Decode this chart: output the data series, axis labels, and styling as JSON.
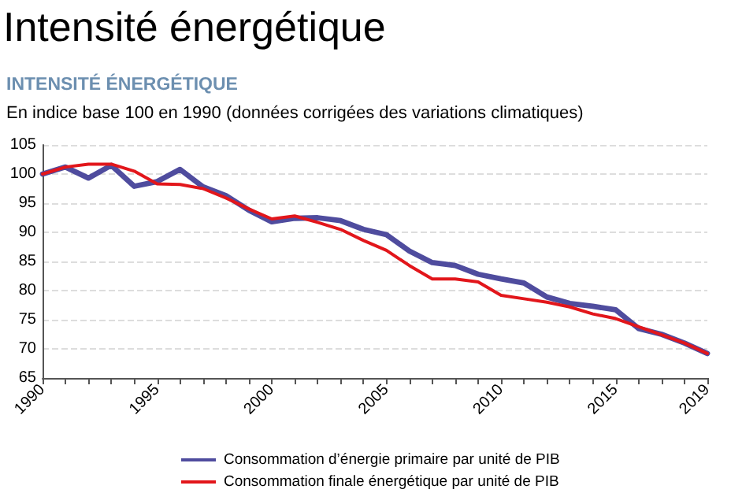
{
  "chart_data": {
    "type": "line",
    "title": "Intensité énergétique",
    "subtitle": "INTENSITÉ ÉNERGÉTIQUE",
    "ylabel": "En indice base 100 en 1990 (données corrigées des variations climatiques)",
    "x": [
      1990,
      1991,
      1992,
      1993,
      1994,
      1995,
      1996,
      1997,
      1998,
      1999,
      2000,
      2001,
      2002,
      2003,
      2004,
      2005,
      2006,
      2007,
      2008,
      2009,
      2010,
      2011,
      2012,
      2013,
      2014,
      2015,
      2016,
      2017,
      2018,
      2019
    ],
    "series": [
      {
        "name": "Consommation d’énergie primaire par unité de PIB",
        "color": "#4f4c9e",
        "values": [
          100,
          101.2,
          99.3,
          101.5,
          97.9,
          98.7,
          100.8,
          97.8,
          96.3,
          93.8,
          91.8,
          92.4,
          92.5,
          92.0,
          90.5,
          89.6,
          86.8,
          84.8,
          84.3,
          82.8,
          82.0,
          81.3,
          78.9,
          77.8,
          77.3,
          76.7,
          73.5,
          72.5,
          71.0,
          69.2
        ]
      },
      {
        "name": "Consommation finale énergétique par unité de PIB",
        "color": "#e2161b",
        "values": [
          100,
          101.2,
          101.7,
          101.7,
          100.5,
          98.3,
          98.2,
          97.5,
          95.9,
          94.0,
          92.3,
          92.8,
          91.7,
          90.5,
          88.6,
          86.9,
          84.3,
          82.0,
          82.0,
          81.5,
          79.2,
          78.6,
          78.0,
          77.2,
          76.0,
          75.2,
          73.8,
          72.4,
          71.0,
          69.2
        ]
      }
    ],
    "xlim": [
      1990,
      2019
    ],
    "xticks": [
      1990,
      {
        "value": 1991,
        "label": null
      },
      {
        "value": 1992,
        "label": null
      },
      {
        "value": 1993,
        "label": null
      },
      {
        "value": 1994,
        "label": null
      },
      1995,
      {
        "value": 1996,
        "label": null
      },
      {
        "value": 1997,
        "label": null
      },
      {
        "value": 1998,
        "label": null
      },
      {
        "value": 1999,
        "label": null
      },
      2000,
      {
        "value": 2001,
        "label": null
      },
      {
        "value": 2002,
        "label": null
      },
      {
        "value": 2003,
        "label": null
      },
      {
        "value": 2004,
        "label": null
      },
      2005,
      {
        "value": 2006,
        "label": null
      },
      {
        "value": 2007,
        "label": null
      },
      {
        "value": 2008,
        "label": null
      },
      {
        "value": 2009,
        "label": null
      },
      2010,
      {
        "value": 2011,
        "label": null
      },
      {
        "value": 2012,
        "label": null
      },
      {
        "value": 2013,
        "label": null
      },
      {
        "value": 2014,
        "label": null
      },
      2015,
      {
        "value": 2016,
        "label": null
      },
      {
        "value": 2017,
        "label": null
      },
      {
        "value": 2018,
        "label": null
      },
      2019
    ],
    "ylim": [
      65,
      105
    ],
    "yticks": [
      65,
      70,
      75,
      80,
      85,
      90,
      95,
      100,
      105
    ],
    "grid": "y",
    "legend": "bottom",
    "marker": "none",
    "line_style": "solid"
  }
}
